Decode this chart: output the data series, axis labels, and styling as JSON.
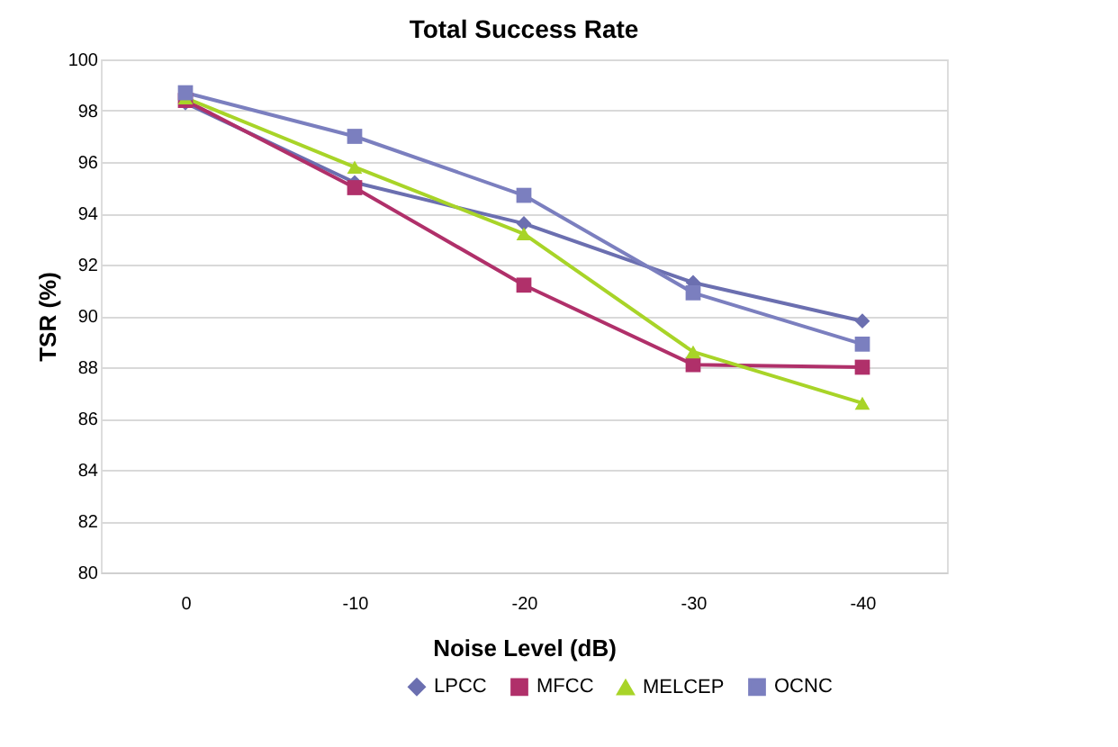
{
  "chart_data": {
    "type": "line",
    "title": "Total Success Rate",
    "xlabel": "Noise Level (dB)",
    "ylabel": "TSR (%)",
    "categories": [
      "0",
      "-10",
      "-20",
      "-30",
      "-40"
    ],
    "series": [
      {
        "name": "LPCC",
        "color": "#6b6fb0",
        "marker": "diamond",
        "values": [
          98.3,
          95.2,
          93.6,
          91.3,
          89.8
        ]
      },
      {
        "name": "MFCC",
        "color": "#b0306a",
        "marker": "square",
        "values": [
          98.4,
          95.0,
          91.2,
          88.1,
          88.0
        ]
      },
      {
        "name": "MELCEP",
        "color": "#a8d428",
        "marker": "triangle",
        "values": [
          98.5,
          95.8,
          93.2,
          88.6,
          86.6
        ]
      },
      {
        "name": "OCNC",
        "color": "#7b7fbf",
        "marker": "square",
        "values": [
          98.7,
          97.0,
          94.7,
          90.9,
          88.9
        ]
      }
    ],
    "ylim": [
      80,
      100
    ],
    "yticks": [
      80,
      82,
      84,
      86,
      88,
      90,
      92,
      94,
      96,
      98,
      100
    ],
    "grid": "y",
    "legend": "bottom right",
    "line_style": "solid"
  }
}
